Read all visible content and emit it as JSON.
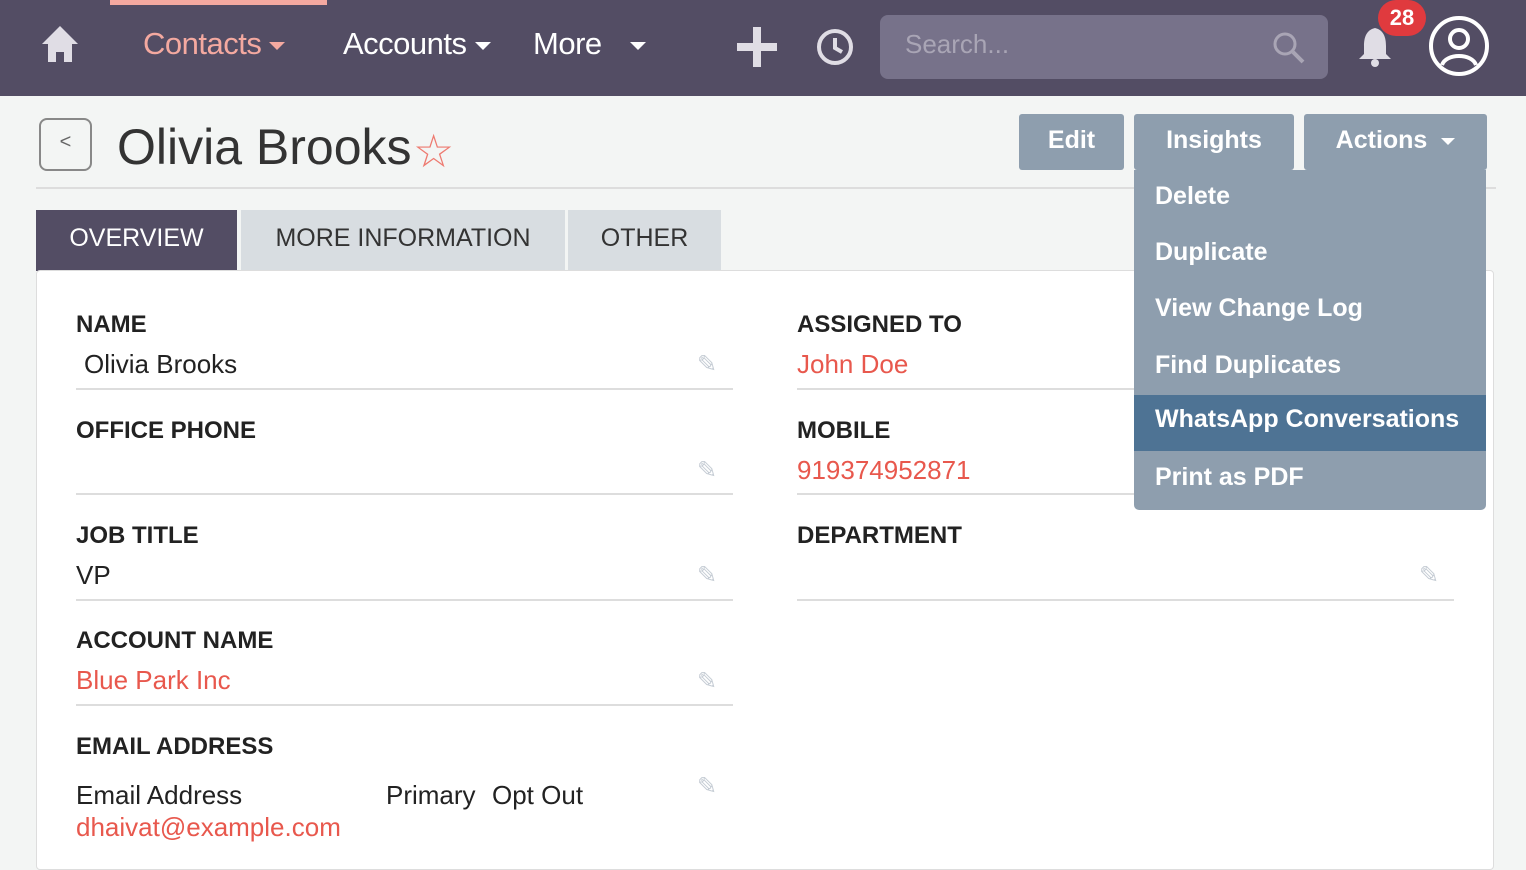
{
  "nav": {
    "items": [
      "Contacts",
      "Accounts",
      "More"
    ],
    "search_placeholder": "Search...",
    "notifications": "28"
  },
  "record": {
    "title": "Olivia Brooks",
    "back": "<"
  },
  "actions": {
    "edit": "Edit",
    "insights": "Insights",
    "actions": "Actions",
    "menu": [
      "Delete",
      "Duplicate",
      "View Change Log",
      "Find Duplicates",
      "WhatsApp Conversations",
      "Print as PDF"
    ]
  },
  "tabs": [
    "OVERVIEW",
    "MORE INFORMATION",
    "OTHER"
  ],
  "fields": {
    "name_label": "NAME",
    "name": "Olivia Brooks",
    "office_phone_label": "OFFICE PHONE",
    "job_title_label": "JOB TITLE",
    "job_title": "VP",
    "account_label": "ACCOUNT NAME",
    "account": "Blue Park Inc",
    "email_label": "EMAIL ADDRESS",
    "email_col": "Email Address",
    "primary_col": "Primary",
    "optout_col": "Opt Out",
    "email": "dhaivat@example.com",
    "assigned_label": "ASSIGNED TO",
    "assigned": "John Doe",
    "mobile_label": "MOBILE",
    "mobile": "919374952871",
    "department_label": "DEPARTMENT"
  },
  "colors": {
    "nav": "#534d64",
    "accent": "#f4a9a0",
    "link": "#e8584d",
    "menu": "#8e9eae",
    "menu_highlight": "#4e7394"
  }
}
